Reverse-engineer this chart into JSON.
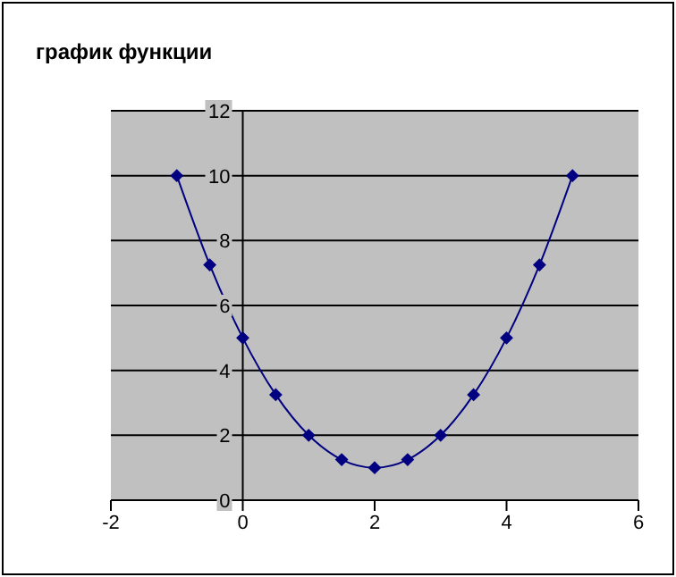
{
  "chart_data": {
    "type": "line",
    "title": "график функции",
    "x": [
      -1,
      -0.5,
      0,
      0.5,
      1,
      1.5,
      2,
      2.5,
      3,
      3.5,
      4,
      4.5,
      5
    ],
    "series": [
      {
        "color": "#000080",
        "values": [
          10,
          7.25,
          5,
          3.25,
          2,
          1.25,
          1,
          1.25,
          2,
          3.25,
          5,
          7.25,
          10
        ]
      }
    ],
    "xlim": [
      -2,
      6
    ],
    "xticks": [
      -2,
      0,
      2,
      4,
      6
    ],
    "ylim": [
      0,
      12
    ],
    "yticks": [
      0,
      2,
      4,
      6,
      8,
      10,
      12
    ],
    "grid": "y",
    "marker": "diamond",
    "line_style": "solid"
  }
}
